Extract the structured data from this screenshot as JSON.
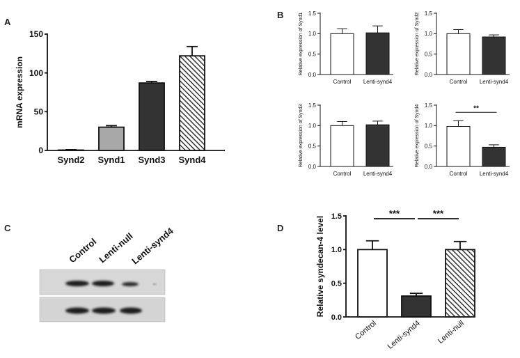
{
  "panels": {
    "a": "A",
    "b": "B",
    "c": "C",
    "d": "D"
  },
  "blot": {
    "lanes": [
      "Control",
      "Lenti-null",
      "Lenti-synd4"
    ]
  },
  "chart_data": [
    {
      "id": "A",
      "type": "bar",
      "categories": [
        "Synd2",
        "Synd1",
        "Synd3",
        "Synd4"
      ],
      "values": [
        0.5,
        30,
        87,
        122
      ],
      "errors": [
        0.5,
        2,
        2,
        12
      ],
      "fills": [
        "#ffffff",
        "#a8a8a8",
        "#333333",
        "hatch"
      ],
      "ylabel": "mRNA expression",
      "xlabel": "",
      "ylim": [
        0,
        150
      ],
      "yticks": [
        "0",
        "50",
        "100",
        "150"
      ]
    },
    {
      "id": "B1",
      "type": "bar",
      "categories": [
        "Control",
        "Lenti-synd4"
      ],
      "values": [
        1.0,
        1.02
      ],
      "errors": [
        0.12,
        0.17
      ],
      "fills": [
        "#ffffff",
        "#333333"
      ],
      "ylabel": "Relative expression of Synd1",
      "ylim": [
        0,
        1.5
      ],
      "yticks": [
        "0.0",
        "0.5",
        "1.0",
        "1.5"
      ]
    },
    {
      "id": "B2",
      "type": "bar",
      "categories": [
        "Control",
        "Lenti-synd4"
      ],
      "values": [
        1.0,
        0.92
      ],
      "errors": [
        0.1,
        0.05
      ],
      "fills": [
        "#ffffff",
        "#333333"
      ],
      "ylabel": "Relative expression of Synd2",
      "ylim": [
        0,
        1.5
      ],
      "yticks": [
        "0.0",
        "0.5",
        "1.0",
        "1.5"
      ]
    },
    {
      "id": "B3",
      "type": "bar",
      "categories": [
        "Control",
        "Lenti-synd4"
      ],
      "values": [
        1.0,
        1.02
      ],
      "errors": [
        0.1,
        0.09
      ],
      "fills": [
        "#ffffff",
        "#333333"
      ],
      "ylabel": "Relative expression of Synd3",
      "ylim": [
        0,
        1.5
      ],
      "yticks": [
        "0.0",
        "0.5",
        "1.0",
        "1.5"
      ]
    },
    {
      "id": "B4",
      "type": "bar",
      "categories": [
        "Control",
        "Lenti-synd4"
      ],
      "values": [
        0.98,
        0.47
      ],
      "errors": [
        0.14,
        0.06
      ],
      "fills": [
        "#ffffff",
        "#333333"
      ],
      "ylabel": "Relative expression of Synd4",
      "ylim": [
        0,
        1.5
      ],
      "yticks": [
        "0.0",
        "0.5",
        "1.0",
        "1.5"
      ],
      "annotations": [
        {
          "text": "**",
          "from": 0,
          "to": 1
        }
      ]
    },
    {
      "id": "D",
      "type": "bar",
      "categories": [
        "Control",
        "Lenti-synd4",
        "Lenti-null"
      ],
      "values": [
        1.0,
        0.31,
        1.0
      ],
      "errors": [
        0.13,
        0.04,
        0.12
      ],
      "fills": [
        "#ffffff",
        "#333333",
        "hatch"
      ],
      "ylabel": "Relative syndecan-4 level",
      "ylim": [
        0,
        1.5
      ],
      "yticks": [
        "0.0",
        "0.5",
        "1.0",
        "1.5"
      ],
      "annotations": [
        {
          "text": "***",
          "from": 0,
          "to": 1
        },
        {
          "text": "***",
          "from": 1,
          "to": 2
        }
      ]
    }
  ]
}
